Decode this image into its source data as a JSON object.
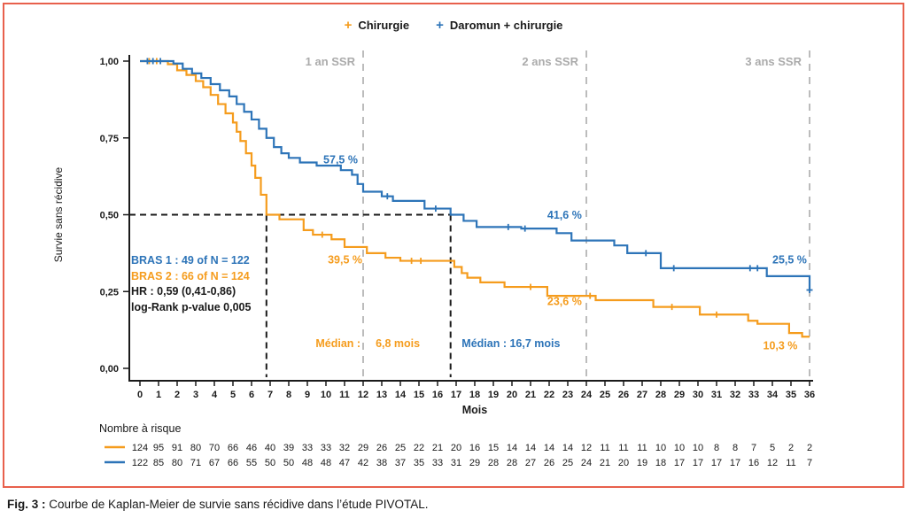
{
  "figure": {
    "caption_prefix": "Fig. 3 :",
    "caption_text": " Courbe de Kaplan-Meier de survie sans récidive dans l’étude PIVOTAL."
  },
  "colors": {
    "chirurgie": "#F59C1D",
    "daromun": "#2D74B8",
    "milestone_gray": "#ABABAB",
    "axis_black": "#1a1a1a",
    "figure_border": "#E8604C"
  },
  "legend": [
    {
      "label": "Chirurgie",
      "marker": "plus-marker",
      "color": "#F59C1D"
    },
    {
      "label": "Daromun + chirurgie",
      "marker": "plus-marker",
      "color": "#2D74B8"
    }
  ],
  "stats": {
    "lines": [
      {
        "text": "BRAS 1 : 49 of N = 122",
        "color": "#2D74B8"
      },
      {
        "text": "BRAS 2 : 66 of N = 124",
        "color": "#F59C1D"
      },
      {
        "text": "HR : 0,59 (0,41-0,86)",
        "color": "#1a1a1a"
      },
      {
        "text": "log-Rank p-value 0,005",
        "color": "#1a1a1a"
      }
    ]
  },
  "chart_data": {
    "type": "line",
    "subtype": "kaplan-meier-step",
    "title": "",
    "xlabel": "Mois",
    "ylabel": "Survie sans récidive",
    "xlim": [
      0,
      36
    ],
    "ylim": [
      0,
      1
    ],
    "xticks": [
      0,
      1,
      2,
      3,
      4,
      5,
      6,
      7,
      8,
      9,
      10,
      11,
      12,
      13,
      14,
      15,
      16,
      17,
      18,
      19,
      20,
      21,
      22,
      23,
      24,
      25,
      26,
      27,
      28,
      29,
      30,
      31,
      32,
      33,
      34,
      35,
      36
    ],
    "yticks": [
      0,
      0.25,
      0.5,
      0.75,
      1
    ],
    "ytick_labels": [
      "0,00",
      "0,25",
      "0,50",
      "0,75",
      "1,00"
    ],
    "grid": false,
    "legend_position": "top-center",
    "milestones": [
      {
        "month": 12,
        "label": "1 an SSR"
      },
      {
        "month": 24,
        "label": "2 ans SSR"
      },
      {
        "month": 36,
        "label": "3 ans SSR"
      }
    ],
    "medians": [
      {
        "series": "Chirurgie",
        "months": 6.8
      },
      {
        "series": "Daromun + chirurgie",
        "months": 16.7
      }
    ],
    "median_labels": [
      {
        "survival": 0.082,
        "color": "#F59C1D",
        "parts": [
          {
            "text": "Médian :",
            "month": 11.86,
            "anchor": "end"
          },
          {
            "text": "6,8 mois",
            "month": 12.67,
            "anchor": "start"
          }
        ]
      },
      {
        "survival": 0.082,
        "color": "#2D74B8",
        "parts": [
          {
            "text": "Médian : 16,7 mois",
            "month": 17.3,
            "anchor": "start"
          }
        ]
      }
    ],
    "series": [
      {
        "name": "Chirurgie",
        "color": "#F59C1D",
        "points": [
          [
            0,
            1.0
          ],
          [
            1.5,
            0.99
          ],
          [
            2.0,
            0.97
          ],
          [
            2.5,
            0.955
          ],
          [
            3.0,
            0.935
          ],
          [
            3.4,
            0.915
          ],
          [
            3.8,
            0.89
          ],
          [
            4.2,
            0.86
          ],
          [
            4.6,
            0.83
          ],
          [
            5.0,
            0.8
          ],
          [
            5.2,
            0.77
          ],
          [
            5.4,
            0.74
          ],
          [
            5.7,
            0.7
          ],
          [
            6.0,
            0.66
          ],
          [
            6.2,
            0.62
          ],
          [
            6.5,
            0.565
          ],
          [
            6.8,
            0.5
          ],
          [
            7.5,
            0.485
          ],
          [
            8.8,
            0.45
          ],
          [
            9.3,
            0.435
          ],
          [
            10.3,
            0.42
          ],
          [
            11.0,
            0.395
          ],
          [
            12.2,
            0.375
          ],
          [
            13.2,
            0.36
          ],
          [
            14.0,
            0.35
          ],
          [
            16.9,
            0.33
          ],
          [
            17.3,
            0.31
          ],
          [
            17.6,
            0.295
          ],
          [
            18.3,
            0.28
          ],
          [
            19.6,
            0.265
          ],
          [
            21.9,
            0.236
          ],
          [
            24.5,
            0.222
          ],
          [
            27.6,
            0.2
          ],
          [
            30.1,
            0.175
          ],
          [
            32.7,
            0.155
          ],
          [
            33.2,
            0.145
          ],
          [
            34.9,
            0.115
          ],
          [
            35.6,
            0.103
          ],
          [
            36,
            0.103
          ]
        ],
        "censor_marks": [
          [
            0.5,
            1.0
          ],
          [
            0.9,
            1.0
          ],
          [
            9.8,
            0.435
          ],
          [
            14.6,
            0.35
          ],
          [
            15.1,
            0.35
          ],
          [
            21.0,
            0.265
          ],
          [
            24.2,
            0.236
          ],
          [
            28.6,
            0.2
          ],
          [
            31.0,
            0.175
          ]
        ],
        "value_labels": [
          {
            "text": "39,5 %",
            "month": 10.1,
            "survival": 0.354
          },
          {
            "text": "23,6 %",
            "month": 21.9,
            "survival": 0.219
          },
          {
            "text": "10,3 %",
            "month": 33.5,
            "survival": 0.075
          }
        ]
      },
      {
        "name": "Daromun + chirurgie",
        "color": "#2D74B8",
        "points": [
          [
            0,
            1.0
          ],
          [
            1.8,
            0.992
          ],
          [
            2.3,
            0.975
          ],
          [
            2.8,
            0.96
          ],
          [
            3.3,
            0.945
          ],
          [
            3.8,
            0.925
          ],
          [
            4.3,
            0.905
          ],
          [
            4.8,
            0.885
          ],
          [
            5.2,
            0.86
          ],
          [
            5.6,
            0.835
          ],
          [
            6.0,
            0.81
          ],
          [
            6.4,
            0.78
          ],
          [
            6.8,
            0.75
          ],
          [
            7.2,
            0.72
          ],
          [
            7.6,
            0.7
          ],
          [
            8.0,
            0.685
          ],
          [
            8.6,
            0.67
          ],
          [
            9.5,
            0.66
          ],
          [
            10.8,
            0.645
          ],
          [
            11.4,
            0.63
          ],
          [
            11.7,
            0.6
          ],
          [
            12.0,
            0.575
          ],
          [
            13.0,
            0.56
          ],
          [
            13.6,
            0.545
          ],
          [
            15.3,
            0.52
          ],
          [
            16.7,
            0.5
          ],
          [
            17.4,
            0.48
          ],
          [
            18.1,
            0.46
          ],
          [
            20.5,
            0.455
          ],
          [
            22.4,
            0.44
          ],
          [
            23.2,
            0.416
          ],
          [
            25.5,
            0.4
          ],
          [
            26.2,
            0.375
          ],
          [
            28.0,
            0.326
          ],
          [
            33.7,
            0.3
          ],
          [
            36,
            0.255
          ]
        ],
        "censor_marks": [
          [
            0.4,
            1.0
          ],
          [
            0.7,
            1.0
          ],
          [
            1.1,
            1.0
          ],
          [
            13.3,
            0.56
          ],
          [
            15.9,
            0.52
          ],
          [
            19.8,
            0.46
          ],
          [
            20.7,
            0.455
          ],
          [
            27.2,
            0.375
          ],
          [
            28.7,
            0.326
          ],
          [
            32.8,
            0.326
          ],
          [
            33.2,
            0.326
          ],
          [
            36,
            0.255
          ]
        ],
        "value_labels": [
          {
            "text": "57,5 %",
            "month": 9.86,
            "survival": 0.68
          },
          {
            "text": "41,6 %",
            "month": 21.9,
            "survival": 0.5
          },
          {
            "text": "25,5 %",
            "month": 34.0,
            "survival": 0.354
          }
        ]
      }
    ],
    "risk_table": {
      "title": "Nombre à risque",
      "rows": [
        {
          "name": "Chirurgie",
          "color": "#F59C1D",
          "values": [
            124,
            95,
            91,
            80,
            70,
            66,
            46,
            40,
            39,
            33,
            33,
            32,
            29,
            26,
            25,
            22,
            21,
            20,
            16,
            15,
            14,
            14,
            14,
            14,
            12,
            11,
            11,
            11,
            10,
            10,
            10,
            8,
            8,
            7,
            5,
            2,
            2
          ]
        },
        {
          "name": "Daromun + chirurgie",
          "color": "#2D74B8",
          "values": [
            122,
            85,
            80,
            71,
            67,
            66,
            55,
            50,
            50,
            48,
            48,
            47,
            42,
            38,
            37,
            35,
            33,
            31,
            29,
            28,
            28,
            27,
            26,
            25,
            24,
            21,
            20,
            19,
            18,
            17,
            17,
            17,
            17,
            16,
            12,
            11,
            7
          ]
        }
      ]
    }
  }
}
